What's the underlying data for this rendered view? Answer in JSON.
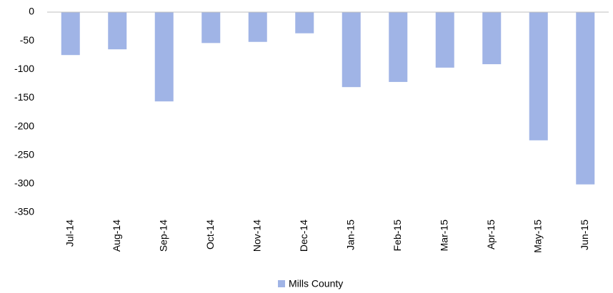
{
  "chart_data": {
    "type": "bar",
    "categories": [
      "Jul-14",
      "Aug-14",
      "Sep-14",
      "Oct-14",
      "Nov-14",
      "Dec-14",
      "Jan-15",
      "Feb-15",
      "Mar-15",
      "Apr-15",
      "May-15",
      "Jun-15"
    ],
    "series": [
      {
        "name": "Mills County",
        "color": "#a0b4e6",
        "values": [
          -75,
          -65,
          -156,
          -54,
          -52,
          -37,
          -131,
          -122,
          -97,
          -91,
          -224,
          -301
        ]
      }
    ],
    "ylim": [
      -350,
      0
    ],
    "yticks": [
      0,
      -50,
      -100,
      -150,
      -200,
      -250,
      -300,
      -350
    ],
    "legend": "bottom"
  }
}
